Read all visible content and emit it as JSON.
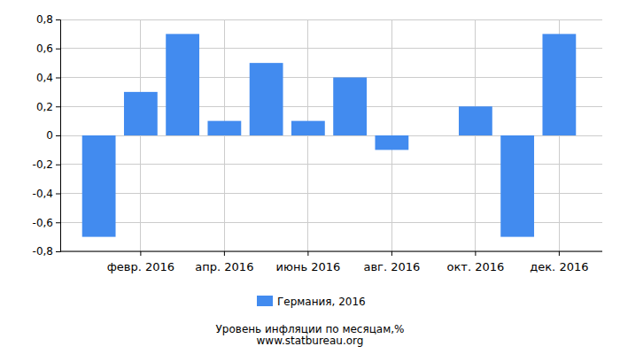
{
  "chart_data": {
    "type": "bar",
    "title": "Уровень инфляции по месяцам,%",
    "subtitle": "www.statbureau.org",
    "categories": [
      null,
      "февр. 2016",
      null,
      "апр. 2016",
      null,
      "июнь 2016",
      null,
      "авг. 2016",
      null,
      "окт. 2016",
      null,
      "дек. 2016"
    ],
    "series": [
      {
        "name": "Германия, 2016",
        "color": "#428bef",
        "values": [
          -0.7,
          0.3,
          0.7,
          0.1,
          0.5,
          0.1,
          0.4,
          -0.1,
          0.0,
          0.2,
          -0.7,
          0.7
        ]
      }
    ],
    "ylim": [
      -0.8,
      0.8
    ],
    "yticks": [
      {
        "value": -0.8,
        "label": "-0,8"
      },
      {
        "value": -0.6,
        "label": "-0,6"
      },
      {
        "value": -0.4,
        "label": "-0,4"
      },
      {
        "value": -0.2,
        "label": "-0,2"
      },
      0,
      {
        "value": 0.2,
        "label": "0,2"
      },
      {
        "value": 0.4,
        "label": "0,4"
      },
      {
        "value": 0.6,
        "label": "0,6"
      },
      {
        "value": 0.8,
        "label": "0,8"
      }
    ],
    "grid": true,
    "legend": "bottom"
  }
}
